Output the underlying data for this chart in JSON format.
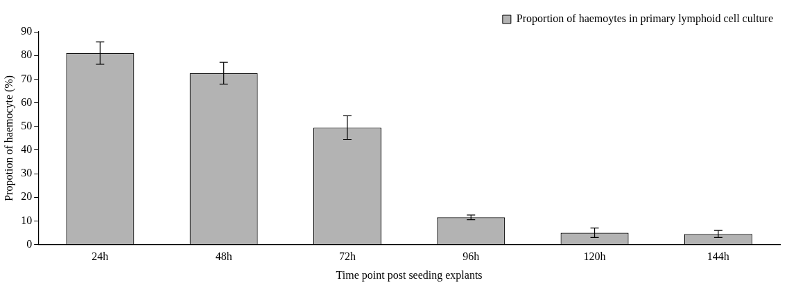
{
  "chart_data": {
    "type": "bar",
    "xlabel": "Time point post seeding explants",
    "ylabel": "Propotion of haemocyte (%)",
    "categories": [
      "24h",
      "48h",
      "72h",
      "96h",
      "120h",
      "144h"
    ],
    "series": [
      {
        "name": "Proportion of haemoytes in primary lymphoid cell culture",
        "color": "#b3b3b3",
        "values": [
          81,
          72.5,
          49.5,
          11.5,
          5,
          4.5
        ],
        "errors": [
          4.7,
          4.6,
          5,
          1,
          2,
          1.5
        ]
      }
    ],
    "ylim": [
      0,
      90
    ],
    "yticks": [
      0,
      10,
      20,
      30,
      40,
      50,
      60,
      70,
      80,
      90
    ],
    "grid": false,
    "legend": "top right"
  }
}
